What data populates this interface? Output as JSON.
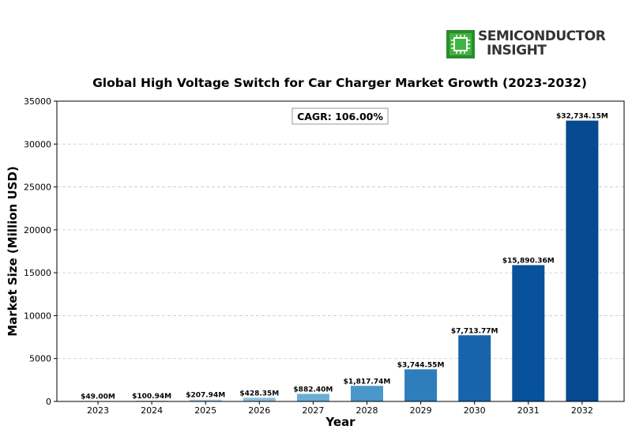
{
  "logo": {
    "line1": "SEMICONDUCTOR",
    "line2": "INSIGHT",
    "icon": "chip-icon",
    "color": "#2c8a2c"
  },
  "chart_data": {
    "type": "bar",
    "title": "Global High Voltage Switch for Car Charger Market Growth (2023-2032)",
    "xlabel": "Year",
    "ylabel": "Market Size (Million USD)",
    "categories": [
      "2023",
      "2024",
      "2025",
      "2026",
      "2027",
      "2028",
      "2029",
      "2030",
      "2031",
      "2032"
    ],
    "values": [
      49.0,
      100.94,
      207.94,
      428.35,
      882.4,
      1817.74,
      3744.55,
      7713.77,
      15890.36,
      32734.15
    ],
    "data_labels": [
      "$49.00M",
      "$100.94M",
      "$207.94M",
      "$428.35M",
      "$882.40M",
      "$1,817.74M",
      "$3,744.55M",
      "$7,713.77M",
      "$15,890.36M",
      "$32,734.15M"
    ],
    "ylim": [
      0,
      35000
    ],
    "yticks": [
      0,
      5000,
      10000,
      15000,
      20000,
      25000,
      30000,
      35000
    ],
    "grid": "horizontal dashed",
    "annotation": "CAGR: 106.00%",
    "colors": [
      "#cfe1f2",
      "#c1d9ed",
      "#abcfe5",
      "#8dbfdd",
      "#6aaed6",
      "#4a98c9",
      "#2e7ebc",
      "#1764ab",
      "#08519c",
      "#084a91"
    ]
  }
}
